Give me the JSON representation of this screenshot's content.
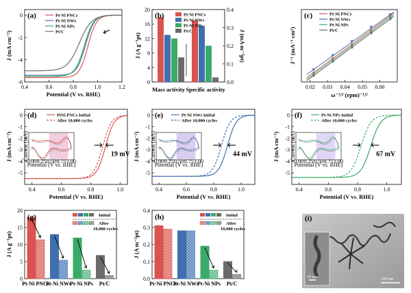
{
  "colors": {
    "pt_ni_pncs": "#d9534f",
    "pt_ni_nws": "#3f6fae",
    "pt_ni_nps": "#3aaa6a",
    "pt_c": "#6b6b6b",
    "initial_box_pink": "#f3c6d8",
    "initial_box_purple": "#d9c8ef"
  },
  "chart_data": [
    {
      "id": "a",
      "type": "line",
      "panel_label": "(a)",
      "xlabel": "Potential (V vs. RHE)",
      "ylabel": "J (mA cm⁻²)",
      "xlim": [
        0.4,
        1.2
      ],
      "ylim": [
        -6,
        0.5
      ],
      "xticks": [
        "0.4",
        "0.6",
        "0.8",
        "1.0",
        "1.2"
      ],
      "yticks": [
        "0",
        "-2",
        "-4",
        "-6"
      ],
      "legend": [
        "Pt-Ni PNCs",
        "Pt-Ni NWs",
        "Pt-Ni NPs",
        "Pt/C"
      ],
      "series": [
        {
          "name": "Pt-Ni PNCs",
          "color": "#d9534f",
          "jlim": -5.6,
          "e_half": 0.92,
          "k": 0.035
        },
        {
          "name": "Pt-Ni NWs",
          "color": "#3f6fae",
          "jlim": -5.4,
          "e_half": 0.9,
          "k": 0.036
        },
        {
          "name": "Pt-Ni NPs",
          "color": "#3aaa6a",
          "jlim": -5.5,
          "e_half": 0.89,
          "k": 0.038
        },
        {
          "name": "Pt/C",
          "color": "#6b6b6b",
          "jlim": -5.0,
          "e_half": 0.85,
          "k": 0.05
        }
      ]
    },
    {
      "id": "b",
      "type": "bar",
      "panel_label": "(b)",
      "ylabel": "J (A g⁻¹pt)",
      "y2label": "J (mA m⁻²pt)",
      "ylim": [
        0,
        20
      ],
      "y2lim": [
        0,
        0.4
      ],
      "yticks": [
        "0",
        "4",
        "8",
        "12",
        "16",
        "20"
      ],
      "y2ticks": [
        "0.0",
        "0.1",
        "0.2",
        "0.3",
        "0.4"
      ],
      "categories": [
        "Mass activity",
        "Specific activity"
      ],
      "legend": [
        "Pt-Ni PNCs",
        "Pt-Ni NWs",
        "Pt-Ni NPs",
        "Pt/C"
      ],
      "series": [
        {
          "name": "Pt-Ni PNCs",
          "values": [
            17.9,
            0.34
          ]
        },
        {
          "name": "Pt-Ni NWs",
          "values": [
            13.0,
            0.31
          ]
        },
        {
          "name": "Pt-Ni NPs",
          "values": [
            12.0,
            0.2
          ]
        },
        {
          "name": "Pt/C",
          "values": [
            6.8,
            0.025
          ]
        }
      ]
    },
    {
      "id": "c",
      "type": "scatter",
      "panel_label": "(c)",
      "xlabel": "ω⁻¹/² (rpm)⁻¹/²",
      "ylabel": "J⁻¹ (mA⁻¹ cm²)",
      "xlim": [
        0.015,
        0.07
      ],
      "xticks": [
        "0.02",
        "0.03",
        "0.04",
        "0.05",
        "0.06"
      ],
      "legend": [
        "Pt-Ni PNCs",
        "Pt-Ni NWs",
        "Pt-Ni NPs",
        "Pt/C"
      ],
      "series": [
        {
          "name": "Pt-Ni PNCs",
          "x": [
            0.022,
            0.033,
            0.044,
            0.055,
            0.066
          ],
          "y": [
            0.18,
            0.27,
            0.36,
            0.45,
            0.54
          ]
        },
        {
          "name": "Pt-Ni NWs",
          "x": [
            0.022,
            0.033,
            0.044,
            0.055,
            0.066
          ],
          "y": [
            0.2,
            0.29,
            0.38,
            0.47,
            0.55
          ]
        },
        {
          "name": "Pt-Ni NPs",
          "x": [
            0.022,
            0.033,
            0.044,
            0.055,
            0.066
          ],
          "y": [
            0.17,
            0.26,
            0.35,
            0.44,
            0.53
          ]
        },
        {
          "name": "Pt/C",
          "x": [
            0.022,
            0.033,
            0.044,
            0.055,
            0.066
          ],
          "y": [
            0.16,
            0.25,
            0.34,
            0.43,
            0.52
          ]
        }
      ]
    },
    {
      "id": "d",
      "type": "line",
      "panel_label": "(d)",
      "xlabel": "Potential (V vs. RHE)",
      "ylabel": "J (mA cm⁻²)",
      "xlim": [
        0.35,
        1.05
      ],
      "ylim": [
        -6,
        0.5
      ],
      "xticks": [
        "0.4",
        "0.6",
        "0.8",
        "1.0"
      ],
      "yticks": [
        "0",
        "-1",
        "-2",
        "-3",
        "-4",
        "-5"
      ],
      "legend": [
        "PtNi PNCs Initial",
        "After 10,000 cycles"
      ],
      "annotation": "19 mV",
      "series": [
        {
          "name": "PtNi PNCs Initial",
          "color": "#d9534f",
          "dash": false,
          "jlim": -5.5,
          "e_half": 0.9,
          "k": 0.03
        },
        {
          "name": "After 10,000 cycles",
          "color": "#d9534f",
          "dash": true,
          "jlim": -5.5,
          "e_half": 0.881,
          "k": 0.03
        }
      ],
      "inset": {
        "color": "#d9534f",
        "tint": "#e7a3c6",
        "ticks": [
          "0.00",
          "0.25",
          "0.50",
          "0.75",
          "1.00"
        ],
        "xlabel": "Potential (V vs. RHE)",
        "ylabel": "Current (mA)"
      }
    },
    {
      "id": "e",
      "type": "line",
      "panel_label": "(e)",
      "xlabel": "Potential (V vs. RHE)",
      "ylabel": "J (mA cm⁻²)",
      "xlim": [
        0.35,
        1.1
      ],
      "ylim": [
        -6,
        0.5
      ],
      "xticks": [
        "0.4",
        "0.6",
        "0.8",
        "1.0"
      ],
      "yticks": [
        "0",
        "-1",
        "-2",
        "-3",
        "-4",
        "-5"
      ],
      "legend": [
        "Pt-Ni NWs Initial",
        "After 10,000 cycles"
      ],
      "annotation": "44 mV",
      "series": [
        {
          "name": "Pt-Ni NWs Initial",
          "color": "#3f6fae",
          "dash": false,
          "jlim": -5.3,
          "e_half": 0.9,
          "k": 0.032
        },
        {
          "name": "After 10,000 cycles",
          "color": "#3f6fae",
          "dash": true,
          "jlim": -5.3,
          "e_half": 0.856,
          "k": 0.032
        }
      ],
      "inset": {
        "color": "#3f6fae",
        "tint": "#b7a6e6",
        "ticks": [
          "0.00",
          "0.25",
          "0.50",
          "0.75",
          "1.00"
        ],
        "xlabel": "Potential (V vs. RHE)",
        "ylabel": "Current (mA)"
      }
    },
    {
      "id": "f",
      "type": "line",
      "panel_label": "(f)",
      "xlabel": "Potential (V vs. RHE)",
      "ylabel": "J (mA cm⁻²)",
      "xlim": [
        0.35,
        1.1
      ],
      "ylim": [
        -6,
        0.5
      ],
      "xticks": [
        "0.4",
        "0.6",
        "0.8",
        "1.0"
      ],
      "yticks": [
        "0",
        "-1",
        "-2",
        "-3",
        "-4",
        "-5"
      ],
      "legend": [
        "Pt-Ni NPs Initial",
        "After 10,000 cycles"
      ],
      "annotation": "67 mV",
      "series": [
        {
          "name": "Pt-Ni NPs Initial",
          "color": "#3aaa6a",
          "dash": false,
          "jlim": -5.4,
          "e_half": 0.89,
          "k": 0.034
        },
        {
          "name": "After 10,000 cycles",
          "color": "#3aaa6a",
          "dash": true,
          "jlim": -5.4,
          "e_half": 0.823,
          "k": 0.034
        }
      ],
      "inset": {
        "color": "#3aaa6a",
        "tint": "#c7b4ee",
        "ticks": [
          "0.00",
          "0.25",
          "0.50",
          "0.75",
          "1.00"
        ],
        "xlabel": "Potential (V vs. RHE)",
        "ylabel": "Current (mA)"
      }
    },
    {
      "id": "g",
      "type": "bar",
      "panel_label": "(g)",
      "ylabel": "J (A g⁻¹pt)",
      "ylim": [
        0,
        20
      ],
      "yticks": [
        "0",
        "5",
        "10",
        "15",
        "20"
      ],
      "categories": [
        "Pt-Ni PNCs",
        "Pt-Ni NWs",
        "Pt-Ni NPs",
        "Pt/C"
      ],
      "series": [
        {
          "name": "Initial",
          "values": [
            17.9,
            12.9,
            11.9,
            6.8
          ]
        },
        {
          "name": "After 10,000 cycles",
          "values": [
            11.4,
            5.4,
            2.5,
            0.9
          ]
        }
      ],
      "legend": [
        "Initial",
        "After",
        "10,000 cycles"
      ]
    },
    {
      "id": "h",
      "type": "bar",
      "panel_label": "(h)",
      "ylabel": "J (A m⁻²pt)",
      "ylim": [
        0,
        0.4
      ],
      "yticks": [
        "0.0",
        "0.1",
        "0.2",
        "0.3",
        "0.4"
      ],
      "categories": [
        "Pt-Ni PNCs",
        "Pt-Ni NWs",
        "Pt-Ni NPs",
        "Pt/C"
      ],
      "series": [
        {
          "name": "Initial",
          "values": [
            0.31,
            0.28,
            0.19,
            0.1
          ]
        },
        {
          "name": "After 10,000 cycles",
          "values": [
            0.29,
            0.28,
            0.05,
            0.025
          ]
        }
      ],
      "legend": [
        "Initial",
        "After",
        "10,000 cycles"
      ]
    }
  ],
  "panel_i": {
    "label": "(i)",
    "scale_small": "10 nm",
    "scale_large": "100 nm"
  }
}
